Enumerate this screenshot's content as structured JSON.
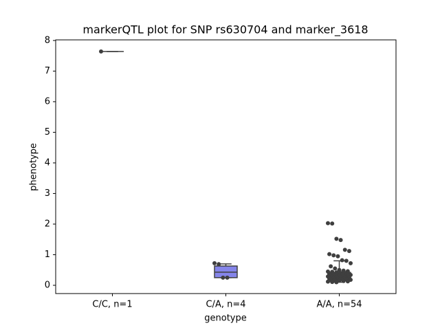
{
  "chart_data": {
    "type": "box",
    "title": "markerQTL plot for SNP rs630704 and marker_3618",
    "xlabel": "genotype",
    "ylabel": "phenotype",
    "categories": [
      "C/C, n=1",
      "C/A, n=4",
      "A/A, n=54"
    ],
    "ylim": [
      -0.27,
      8.02
    ],
    "yticks": [
      0,
      1,
      2,
      3,
      4,
      5,
      6,
      7,
      8
    ],
    "point_color": "#3f3f3f",
    "boxes": [
      {
        "color": "#5b5bd6",
        "whisker_low": 7.64,
        "q1": 7.64,
        "median": 7.64,
        "q3": 7.64,
        "whisker_high": 7.64,
        "points": [
          7.64
        ]
      },
      {
        "color": "#8585ea",
        "whisker_low": 0.25,
        "q1": 0.25,
        "median": 0.43,
        "q3": 0.63,
        "whisker_high": 0.7,
        "points": [
          0.72,
          0.69,
          0.25,
          0.25
        ]
      },
      {
        "color": "#a64dd9",
        "whisker_low": 0.1,
        "q1": 0.18,
        "median": 0.3,
        "q3": 0.42,
        "whisker_high": 0.8,
        "points": [
          2.03,
          2.02,
          1.52,
          1.48,
          1.16,
          1.12,
          1.02,
          0.98,
          0.95,
          0.82,
          0.8,
          0.72,
          0.62,
          0.55,
          0.5,
          0.48,
          0.46,
          0.45,
          0.44,
          0.42,
          0.4,
          0.4,
          0.38,
          0.38,
          0.37,
          0.36,
          0.35,
          0.35,
          0.34,
          0.33,
          0.32,
          0.31,
          0.3,
          0.3,
          0.29,
          0.28,
          0.27,
          0.26,
          0.25,
          0.24,
          0.23,
          0.22,
          0.21,
          0.2,
          0.19,
          0.18,
          0.17,
          0.16,
          0.15,
          0.14,
          0.13,
          0.12,
          0.11,
          0.1
        ]
      }
    ]
  }
}
